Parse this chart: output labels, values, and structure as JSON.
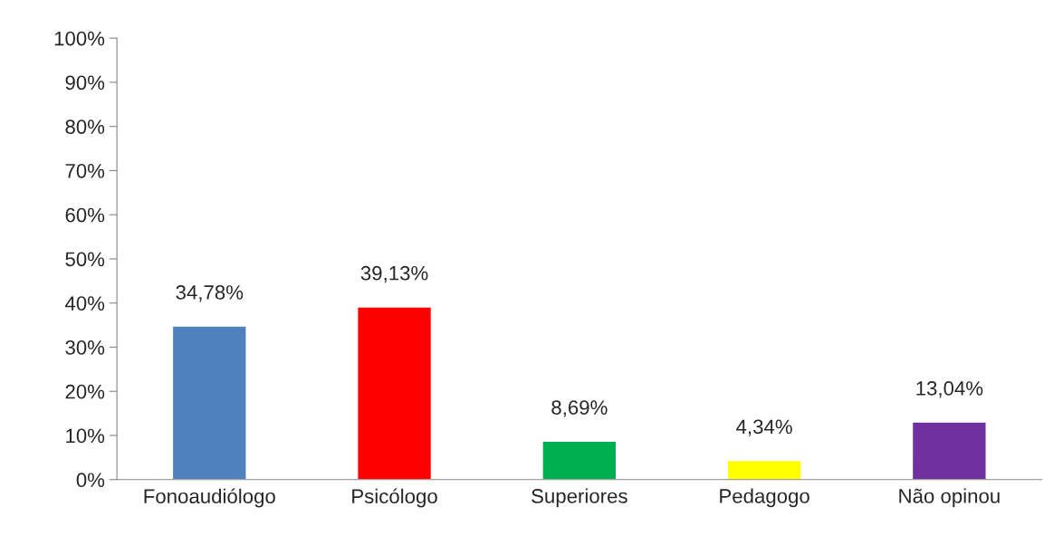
{
  "chart_data": {
    "type": "bar",
    "categories": [
      "Fonoaudiólogo",
      "Psicólogo",
      "Superiores",
      "Pedagogo",
      "Não opinou"
    ],
    "values": [
      34.78,
      39.13,
      8.69,
      4.34,
      13.04
    ],
    "colors": [
      "#4f81bd",
      "#ff0000",
      "#00b050",
      "#ffff00",
      "#7030a0"
    ],
    "value_labels": [
      "34,78%",
      "39,13%",
      "8,69%",
      "4,34%",
      "13,04%"
    ],
    "ylim": [
      0,
      100
    ],
    "yticks": [
      {
        "value": 0,
        "label": "0%"
      },
      {
        "value": 10,
        "label": "10%"
      },
      {
        "value": 20,
        "label": "20%"
      },
      {
        "value": 30,
        "label": "30%"
      },
      {
        "value": 40,
        "label": "40%"
      },
      {
        "value": 50,
        "label": "50%"
      },
      {
        "value": 60,
        "label": "60%"
      },
      {
        "value": 70,
        "label": "70%"
      },
      {
        "value": 80,
        "label": "80%"
      },
      {
        "value": 90,
        "label": "90%"
      },
      {
        "value": 100,
        "label": "100%"
      }
    ],
    "grid": false,
    "legend": false
  }
}
